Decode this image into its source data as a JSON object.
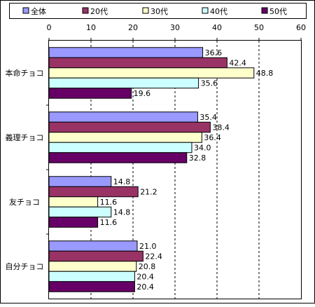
{
  "chart_data": {
    "type": "bar",
    "orientation": "horizontal",
    "categories": [
      "本命チョコ",
      "義理チョコ",
      "友チョコ",
      "自分チョコ"
    ],
    "series": [
      {
        "name": "全体",
        "color": "#9999ff",
        "values": [
          36.6,
          35.4,
          14.8,
          21.0
        ],
        "labels": [
          "36.6",
          "35.4",
          "14.8",
          "21.0"
        ]
      },
      {
        "name": "20代",
        "color": "#993366",
        "values": [
          42.4,
          38.4,
          21.2,
          22.4
        ],
        "labels": [
          "42.4",
          "38.4",
          "21.2",
          "22.4"
        ]
      },
      {
        "name": "30代",
        "color": "#ffffcc",
        "values": [
          48.8,
          36.4,
          11.6,
          20.8
        ],
        "labels": [
          "48.8",
          "36.4",
          "11.6",
          "20.8"
        ]
      },
      {
        "name": "40代",
        "color": "#ccffff",
        "values": [
          35.6,
          34.0,
          14.8,
          20.4
        ],
        "labels": [
          "35.6",
          "34.0",
          "14.8",
          "20.4"
        ]
      },
      {
        "name": "50代",
        "color": "#660066",
        "values": [
          19.6,
          32.8,
          11.6,
          20.4
        ],
        "labels": [
          "19.6",
          "32.8",
          "11.6",
          "20.4"
        ]
      }
    ],
    "xlim": [
      0,
      60
    ],
    "xticks": [
      0,
      10,
      20,
      30,
      40,
      50,
      60
    ],
    "xtick_labels": [
      "0",
      "10",
      "20",
      "30",
      "40",
      "50",
      "60"
    ],
    "grid": "vertical dashed",
    "legend": "top"
  }
}
